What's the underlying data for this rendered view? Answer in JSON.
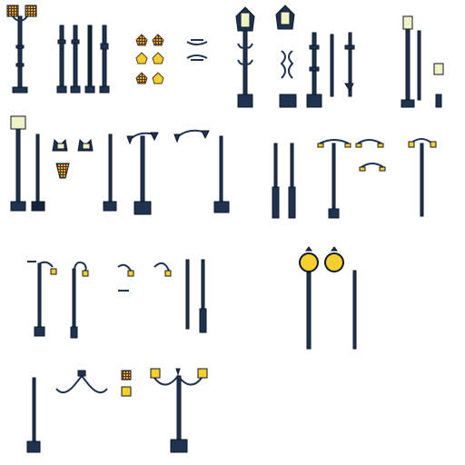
{
  "sheet": {
    "background": "#ffffff",
    "palette": {
      "pole": "#1f3350",
      "pole_dark": "#14233a",
      "outline": "#0d1828",
      "glass": "#eef2c4",
      "lamp_yellow": "#f4cf2e",
      "lamp_orange": "#e9a23a",
      "lamp_glow": "#fff2a6",
      "ornament": "#1f3350"
    }
  },
  "sprites": [
    {
      "name": "double-lantern-lamppost",
      "icon": "lamppost-icon"
    },
    {
      "name": "pole-variants",
      "icon": "pole-icon"
    },
    {
      "name": "small-lanterns",
      "icon": "lantern-icon"
    },
    {
      "name": "hanging-brackets",
      "icon": "bracket-icon"
    },
    {
      "name": "victorian-lamppost",
      "icon": "lamppost-icon"
    },
    {
      "name": "victorian-lamp-parts",
      "icon": "lantern-icon"
    },
    {
      "name": "modern-lamppost-set",
      "icon": "streetlight-icon"
    },
    {
      "name": "gothic-lamppost-set",
      "icon": "lamppost-icon"
    },
    {
      "name": "curved-streetlights",
      "icon": "streetlight-icon"
    },
    {
      "name": "tall-streetlights",
      "icon": "streetlight-icon"
    },
    {
      "name": "shepherd-hook-lamps",
      "icon": "streetlight-icon"
    },
    {
      "name": "globe-clock-lamps",
      "icon": "globe-lamp-icon"
    },
    {
      "name": "candelabra-lamps",
      "icon": "candelabra-icon"
    }
  ]
}
